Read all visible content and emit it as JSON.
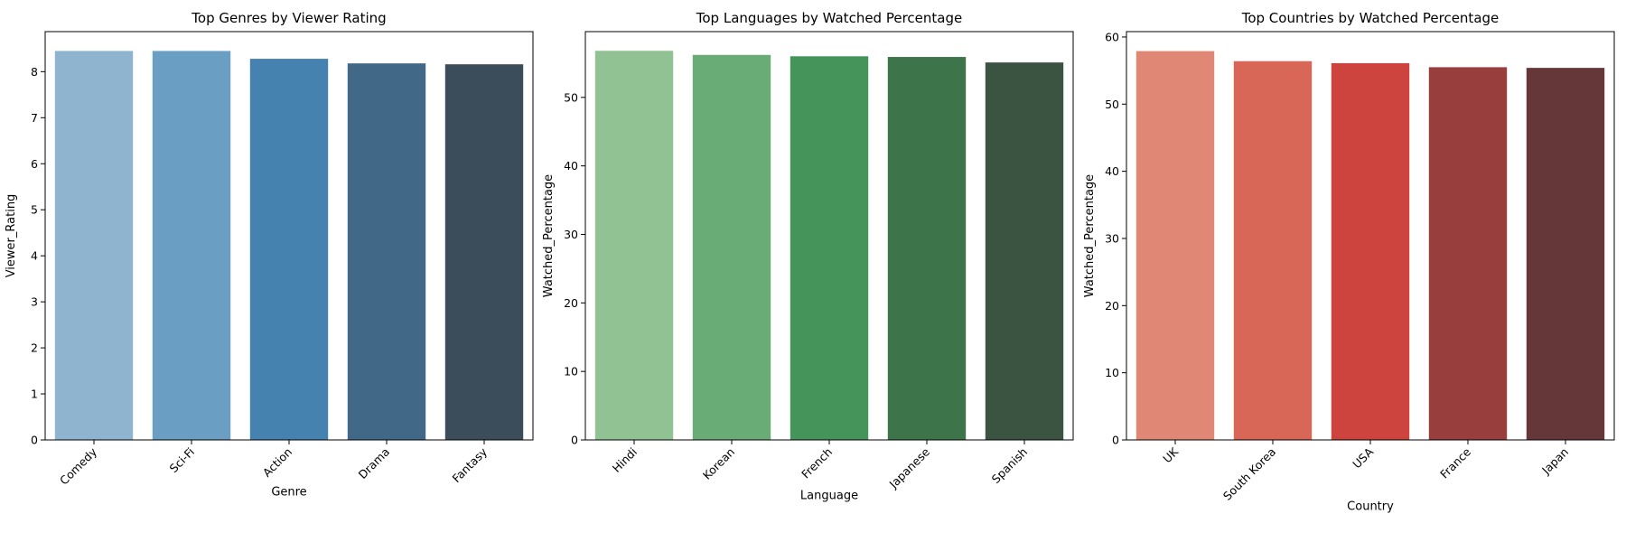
{
  "chart_data": [
    {
      "type": "bar",
      "title": "Top Genres by Viewer Rating",
      "xlabel": "Genre",
      "ylabel": "Viewer_Rating",
      "categories": [
        "Comedy",
        "Sci-Fi",
        "Action",
        "Drama",
        "Fantasy"
      ],
      "values": [
        8.45,
        8.45,
        8.28,
        8.18,
        8.16
      ],
      "ylim": [
        0,
        8.87
      ],
      "yticks": [
        0,
        1,
        2,
        3,
        4,
        5,
        6,
        7,
        8
      ],
      "colors": [
        "#8fb4d0",
        "#6a9ec3",
        "#4682b0",
        "#416987",
        "#3b4d5b"
      ],
      "grid": false,
      "legend": "none"
    },
    {
      "type": "bar",
      "title": "Top Languages by Watched Percentage",
      "xlabel": "Language",
      "ylabel": "Watched_Percentage",
      "categories": [
        "Hindi",
        "Korean",
        "French",
        "Japanese",
        "Spanish"
      ],
      "values": [
        56.8,
        56.2,
        56.0,
        55.9,
        55.1
      ],
      "ylim": [
        0,
        59.6
      ],
      "yticks": [
        0,
        10,
        20,
        30,
        40,
        50
      ],
      "colors": [
        "#90c293",
        "#6aac76",
        "#45955b",
        "#3d744a",
        "#3b5442"
      ],
      "grid": false,
      "legend": "none"
    },
    {
      "type": "bar",
      "title": "Top Countries by Watched Percentage",
      "xlabel": "Country",
      "ylabel": "Watched_Percentage",
      "categories": [
        "UK",
        "South Korea",
        "USA",
        "France",
        "Japan"
      ],
      "values": [
        57.9,
        56.4,
        56.1,
        55.5,
        55.4
      ],
      "ylim": [
        0,
        60.8
      ],
      "yticks": [
        0,
        10,
        20,
        30,
        40,
        50,
        60
      ],
      "colors": [
        "#e18775",
        "#d86758",
        "#cd433e",
        "#983e3c",
        "#663738"
      ],
      "grid": false,
      "legend": "none"
    }
  ]
}
